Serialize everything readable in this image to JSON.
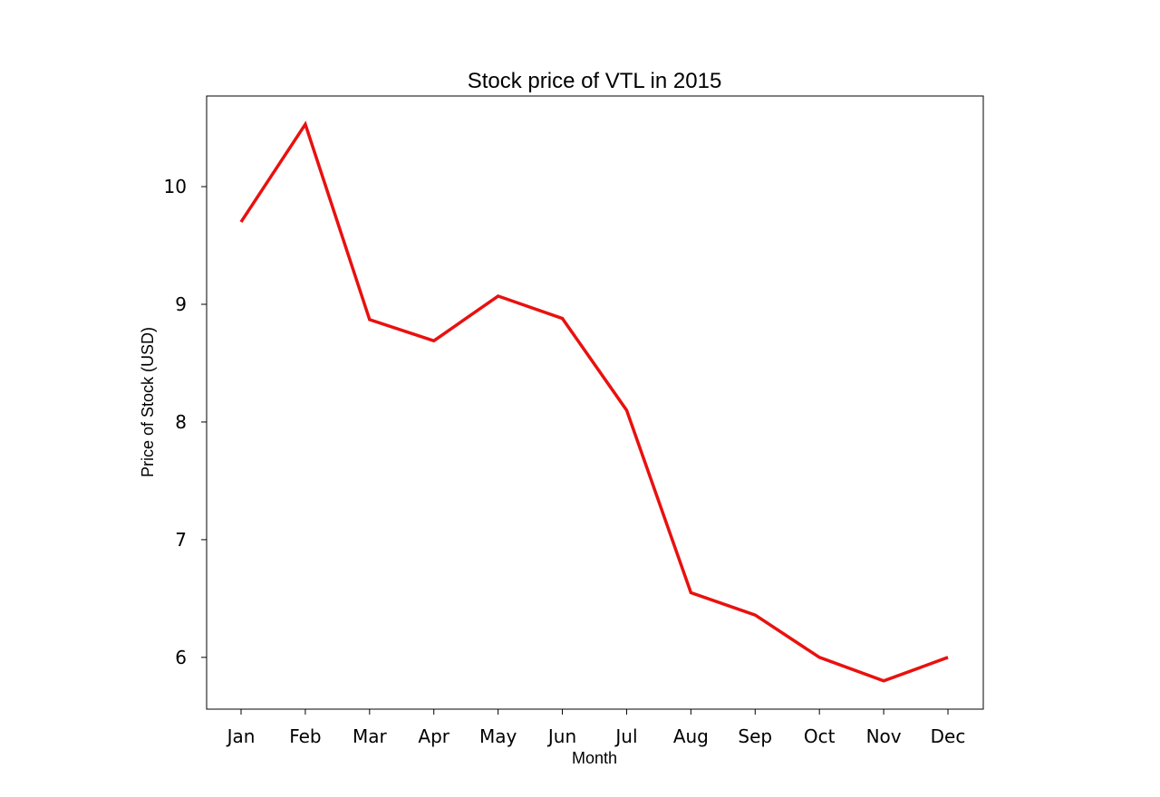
{
  "chart_data": {
    "type": "line",
    "title": "Stock price of VTL in 2015",
    "xlabel": "Month",
    "ylabel": "Price of Stock (USD)",
    "categories": [
      "Jan",
      "Feb",
      "Mar",
      "Apr",
      "May",
      "Jun",
      "Jul",
      "Aug",
      "Sep",
      "Oct",
      "Nov",
      "Dec"
    ],
    "series": [
      {
        "values": [
          9.7,
          10.53,
          8.87,
          8.69,
          9.07,
          8.88,
          8.1,
          6.55,
          6.36,
          6.0,
          5.8,
          6.0
        ],
        "color": "#e8110f"
      }
    ],
    "yticks": [
      6,
      7,
      8,
      9,
      10
    ],
    "ylim": [
      5.56,
      10.77
    ],
    "grid": false,
    "legend": "none"
  }
}
